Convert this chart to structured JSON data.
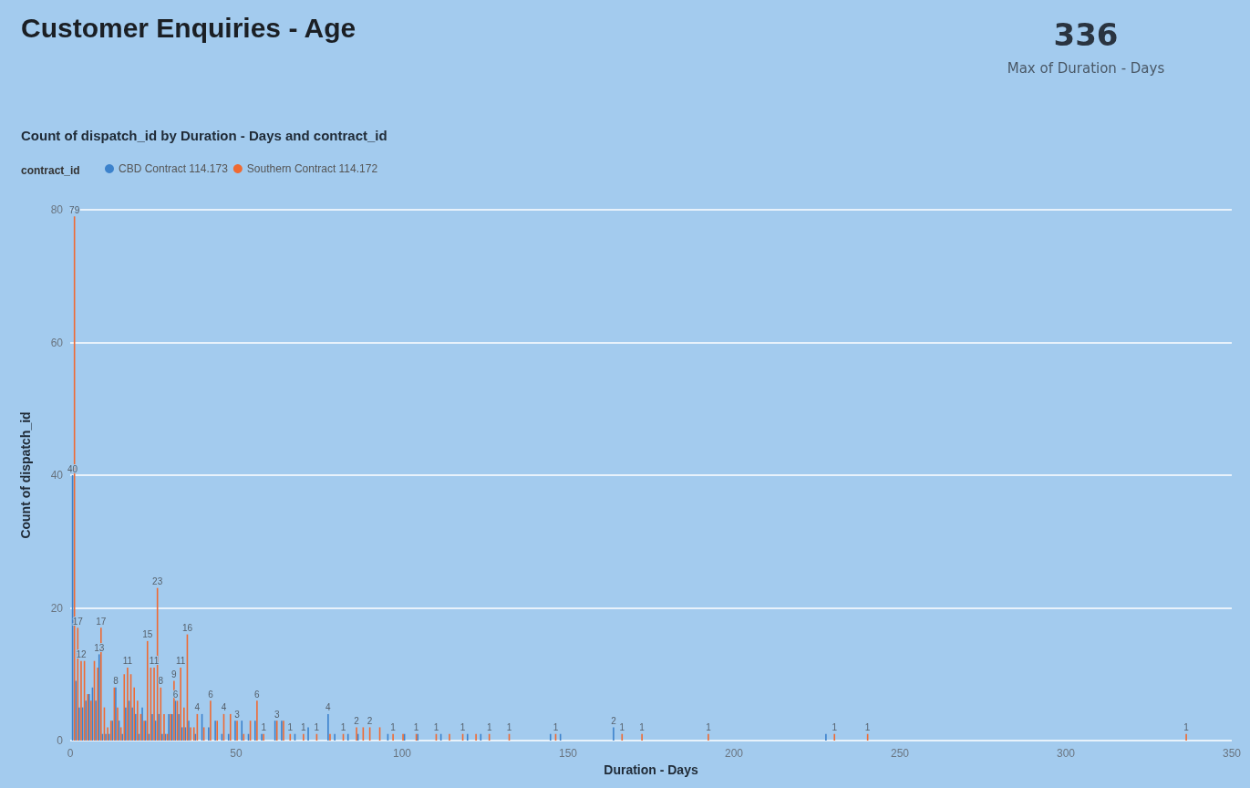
{
  "chart_data": [
    {
      "type": "bar",
      "title": "Customer Enquiries - Age",
      "subtitle": "Count of dispatch_id by Duration - Days and contract_id",
      "xlabel": "Duration - Days",
      "ylabel": "Count of dispatch_id",
      "legend_title": "contract_id",
      "legend": "top left",
      "grid": "y",
      "xlim": [
        0,
        350
      ],
      "xticks": [
        0,
        50,
        100,
        150,
        200,
        250,
        300,
        350
      ],
      "ylim": [
        0,
        80
      ],
      "yticks": [
        0,
        20,
        40,
        60,
        80
      ],
      "series": [
        {
          "name": "CBD Contract 114.173",
          "color": "#3c82cc",
          "x": [
            1,
            2,
            3,
            4,
            5,
            6,
            7,
            8,
            9,
            10,
            11,
            12,
            13,
            14,
            15,
            16,
            17,
            18,
            19,
            20,
            21,
            22,
            23,
            24,
            25,
            26,
            27,
            28,
            29,
            30,
            31,
            32,
            33,
            34,
            35,
            36,
            38,
            40,
            42,
            44,
            46,
            48,
            50,
            52,
            54,
            56,
            58,
            62,
            64,
            68,
            72,
            78,
            80,
            84,
            87,
            96,
            101,
            105,
            112,
            120,
            124,
            145,
            148,
            164,
            228
          ],
          "values": [
            40,
            9,
            5,
            5,
            6,
            7,
            8,
            6,
            13,
            1,
            1,
            1,
            3,
            8,
            3,
            1,
            5,
            6,
            5,
            4,
            1,
            5,
            3,
            1,
            4,
            3,
            4,
            1,
            1,
            4,
            4,
            6,
            4,
            2,
            2,
            3,
            1,
            4,
            2,
            3,
            1,
            1,
            3,
            3,
            1,
            3,
            1,
            3,
            3,
            1,
            2,
            4,
            1,
            1,
            1,
            1,
            1,
            1,
            1,
            1,
            1,
            1,
            1,
            2,
            1
          ],
          "value_labels": [
            "40",
            null,
            null,
            null,
            null,
            null,
            null,
            null,
            "13",
            null,
            null,
            null,
            null,
            "8",
            null,
            null,
            null,
            null,
            null,
            null,
            null,
            null,
            null,
            null,
            null,
            null,
            null,
            null,
            null,
            null,
            null,
            "6",
            null,
            null,
            null,
            null,
            null,
            null,
            null,
            null,
            null,
            null,
            null,
            null,
            null,
            null,
            null,
            null,
            null,
            null,
            null,
            "4",
            null,
            null,
            null,
            null,
            null,
            null,
            null,
            null,
            null,
            null,
            null,
            "2",
            null
          ]
        },
        {
          "name": "Southern Contract 114.172",
          "color": "#ef6a32",
          "x": [
            1,
            2,
            3,
            4,
            5,
            6,
            7,
            8,
            9,
            10,
            11,
            12,
            13,
            14,
            15,
            16,
            17,
            18,
            19,
            20,
            21,
            22,
            23,
            24,
            25,
            26,
            27,
            28,
            29,
            30,
            31,
            32,
            33,
            34,
            35,
            36,
            37,
            38,
            40,
            42,
            44,
            46,
            48,
            50,
            52,
            54,
            56,
            58,
            62,
            64,
            66,
            70,
            74,
            78,
            82,
            86,
            88,
            90,
            93,
            97,
            100,
            104,
            110,
            114,
            118,
            122,
            126,
            132,
            146,
            166,
            172,
            192,
            230,
            240,
            336
          ],
          "values": [
            79,
            17,
            12,
            12,
            7,
            6,
            12,
            11,
            17,
            5,
            2,
            3,
            8,
            5,
            2,
            10,
            11,
            10,
            8,
            6,
            4,
            3,
            15,
            11,
            11,
            23,
            8,
            4,
            1,
            4,
            9,
            6,
            11,
            5,
            16,
            2,
            2,
            4,
            2,
            6,
            3,
            4,
            4,
            3,
            1,
            3,
            6,
            1,
            3,
            3,
            1,
            1,
            1,
            1,
            1,
            2,
            2,
            2,
            2,
            1,
            1,
            1,
            1,
            1,
            1,
            1,
            1,
            1,
            1,
            1,
            1,
            1,
            1,
            1,
            1
          ],
          "value_labels": [
            "79",
            "17",
            "12",
            null,
            null,
            null,
            null,
            null,
            "17",
            null,
            null,
            null,
            null,
            null,
            null,
            null,
            "11",
            null,
            null,
            null,
            null,
            null,
            "15",
            null,
            "11",
            "23",
            "8",
            null,
            null,
            null,
            "9",
            null,
            "11",
            null,
            "16",
            null,
            null,
            "4",
            null,
            "6",
            null,
            "4",
            null,
            "3",
            null,
            null,
            "6",
            "1",
            "3",
            null,
            "1",
            "1",
            "1",
            null,
            "1",
            "2",
            null,
            "2",
            null,
            "1",
            null,
            "1",
            "1",
            null,
            "1",
            null,
            "1",
            "1",
            "1",
            "1",
            "1",
            "1",
            "1",
            "1",
            "1"
          ]
        }
      ]
    },
    {
      "type": "other",
      "title": "336",
      "subtitle": "Max of Duration - Days"
    }
  ]
}
